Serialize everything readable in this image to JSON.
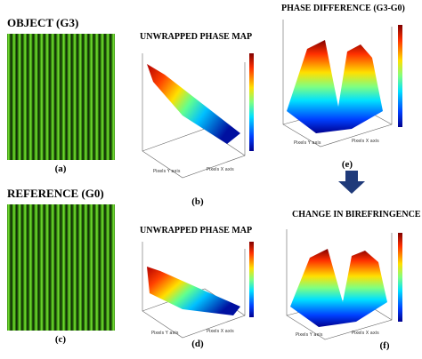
{
  "titles": {
    "object": "OBJECT (G3)",
    "reference": "REFERENCE (G0)",
    "unwrapped_1": "UNWRAPPED PHASE MAP",
    "unwrapped_2": "UNWRAPPED PHASE MAP",
    "phase_difference": "PHASE DIFFERENCE (G3-G0)",
    "birefringence": "CHANGE IN BIREFRINGENCE"
  },
  "panel_labels": [
    "(a)",
    "(b)",
    "(c)",
    "(d)",
    "(e)",
    "(f)"
  ],
  "axis_labels": {
    "y": "Pixels Y axis",
    "x": "Pixels X axis"
  }
}
